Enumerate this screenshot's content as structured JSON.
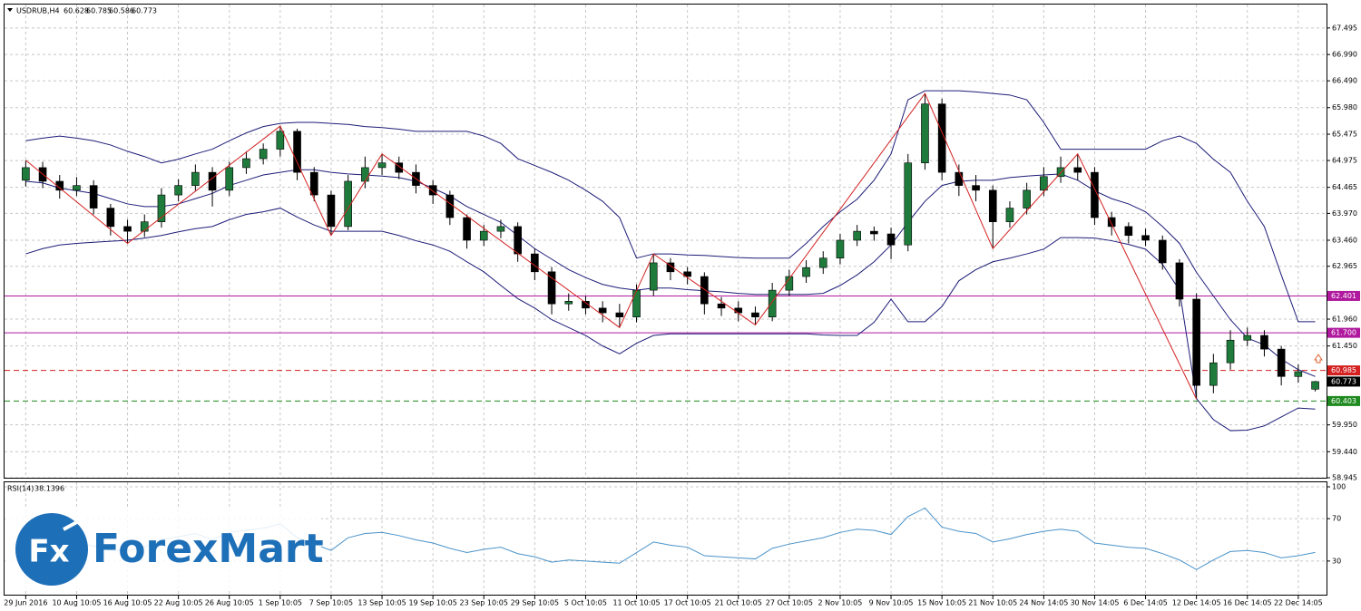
{
  "chart_data": {
    "type": "candlestick",
    "symbol": "USDRUB,H4",
    "categories": [
      "29 Jun 2016",
      null,
      null,
      "10 Aug 10:05",
      null,
      null,
      "16 Aug 10:05",
      null,
      null,
      "22 Aug 10:05",
      null,
      null,
      "26 Aug 10:05",
      null,
      null,
      "1 Sep 10:05",
      null,
      null,
      "7 Sep 10:05",
      null,
      null,
      "13 Sep 10:05",
      null,
      null,
      "19 Sep 10:05",
      null,
      null,
      "23 Sep 10:05",
      null,
      null,
      "29 Sep 10:05",
      null,
      null,
      "5 Oct 10:05",
      null,
      null,
      "11 Oct 10:05",
      null,
      null,
      "17 Oct 10:05",
      null,
      null,
      "21 Oct 10:05",
      null,
      null,
      "27 Oct 10:05",
      null,
      null,
      "2 Nov 10:05",
      null,
      null,
      "9 Nov 10:05",
      null,
      null,
      "15 Nov 10:05",
      null,
      null,
      "21 Nov 10:05",
      null,
      null,
      "24 Nov 14:05",
      null,
      null,
      "30 Nov 14:05",
      null,
      null,
      "6 Dec 14:05",
      null,
      null,
      "12 Dec 14:05",
      null,
      null,
      "16 Dec 14:05",
      null,
      null,
      "22 Dec 14:05",
      null
    ],
    "open": [
      64.6,
      64.84,
      64.58,
      64.41,
      64.5,
      64.07,
      63.72,
      63.63,
      63.81,
      64.32,
      64.5,
      64.75,
      64.41,
      64.84,
      65.01,
      65.19,
      65.53,
      64.75,
      64.32,
      63.72,
      64.58,
      64.84,
      64.93,
      64.75,
      64.5,
      64.32,
      63.89,
      63.46,
      63.63,
      63.72,
      63.2,
      62.86,
      62.25,
      62.3,
      62.17,
      62.08,
      62.0,
      62.51,
      63.03,
      62.86,
      62.77,
      62.25,
      62.17,
      62.08,
      62.0,
      62.51,
      62.77,
      62.94,
      63.12,
      63.46,
      63.63,
      63.58,
      63.37,
      64.93,
      66.05,
      64.75,
      64.5,
      64.41,
      63.81,
      64.07,
      64.41,
      64.67,
      64.84,
      64.75,
      63.89,
      63.72,
      63.55,
      63.46,
      63.03,
      62.34,
      60.7,
      61.13,
      61.56,
      61.65,
      61.39,
      60.87,
      60.628
    ],
    "high": [
      64.98,
      64.95,
      64.7,
      64.66,
      64.6,
      64.15,
      63.85,
      63.95,
      64.45,
      64.62,
      64.9,
      64.85,
      64.95,
      65.15,
      65.3,
      65.63,
      65.58,
      64.85,
      64.4,
      64.7,
      65.05,
      65.1,
      65.05,
      64.9,
      64.6,
      64.4,
      63.95,
      63.75,
      63.85,
      63.8,
      63.3,
      62.95,
      62.45,
      62.4,
      62.3,
      62.25,
      62.62,
      63.2,
      63.12,
      62.95,
      62.85,
      62.38,
      62.3,
      62.2,
      62.65,
      62.9,
      63.08,
      63.25,
      63.58,
      63.75,
      63.72,
      63.7,
      65.1,
      66.25,
      66.15,
      64.9,
      64.7,
      64.5,
      64.2,
      64.55,
      64.85,
      65.05,
      65.1,
      64.85,
      64.0,
      63.8,
      63.68,
      63.55,
      63.1,
      62.45,
      61.3,
      61.75,
      61.8,
      61.75,
      61.45,
      61.1,
      60.785
    ],
    "low": [
      64.48,
      64.45,
      64.25,
      64.3,
      63.95,
      63.55,
      63.4,
      63.52,
      63.7,
      64.2,
      64.4,
      64.1,
      64.3,
      64.72,
      64.9,
      65.05,
      64.6,
      64.2,
      63.55,
      63.65,
      64.45,
      64.7,
      64.62,
      64.35,
      64.15,
      63.75,
      63.3,
      63.35,
      63.5,
      63.05,
      62.7,
      62.05,
      62.12,
      62.05,
      61.9,
      61.8,
      61.9,
      62.4,
      62.7,
      62.62,
      62.05,
      62.02,
      61.92,
      61.85,
      61.92,
      62.4,
      62.65,
      62.82,
      63.0,
      63.35,
      63.45,
      63.1,
      63.25,
      64.8,
      64.6,
      64.3,
      64.2,
      63.3,
      63.7,
      63.95,
      64.3,
      64.55,
      64.6,
      63.75,
      63.55,
      63.4,
      63.35,
      62.9,
      62.2,
      60.44,
      60.55,
      61.0,
      61.45,
      61.25,
      60.7,
      60.75,
      60.586
    ],
    "close": [
      64.84,
      64.58,
      64.41,
      64.5,
      64.07,
      63.72,
      63.63,
      63.81,
      64.32,
      64.5,
      64.75,
      64.41,
      64.84,
      65.01,
      65.19,
      65.53,
      64.75,
      64.32,
      63.72,
      64.58,
      64.84,
      64.93,
      64.75,
      64.5,
      64.32,
      63.89,
      63.46,
      63.63,
      63.72,
      63.2,
      62.86,
      62.25,
      62.3,
      62.17,
      62.08,
      62.0,
      62.51,
      63.03,
      62.86,
      62.77,
      62.25,
      62.17,
      62.08,
      62.0,
      62.51,
      62.77,
      62.94,
      63.12,
      63.46,
      63.63,
      63.58,
      63.37,
      64.93,
      66.05,
      64.75,
      64.5,
      64.41,
      63.81,
      64.07,
      64.41,
      64.67,
      64.84,
      64.75,
      63.89,
      63.72,
      63.55,
      63.46,
      63.03,
      62.34,
      60.7,
      61.13,
      61.56,
      61.65,
      61.39,
      60.87,
      60.96,
      60.773
    ],
    "bull_color": "#1e7b3c",
    "bear_color": "#000000",
    "ylim": [
      58.945,
      67.94
    ],
    "yticks": [
      {
        "value": 67.495,
        "label": "67.495"
      },
      {
        "value": 66.99,
        "label": "66.990"
      },
      {
        "value": 66.49,
        "label": "66.490"
      },
      {
        "value": 65.98,
        "label": "65.980"
      },
      {
        "value": 65.475,
        "label": "65.475"
      },
      {
        "value": 64.975,
        "label": "64.975"
      },
      {
        "value": 64.465,
        "label": "64.465"
      },
      {
        "value": 63.97,
        "label": "63.970"
      },
      {
        "value": 63.46,
        "label": "63.460"
      },
      {
        "value": 62.965,
        "label": "62.965"
      },
      {
        "value": 61.96,
        "label": "61.960"
      },
      {
        "value": 61.45,
        "label": "61.450"
      },
      {
        "value": 59.95,
        "label": "59.950"
      },
      {
        "value": 59.44,
        "label": "59.440"
      },
      {
        "value": 58.945,
        "label": "58.945"
      }
    ],
    "grid": true,
    "bollinger": {
      "color": "#1c1c78",
      "upper": [
        65.35,
        65.4,
        65.44,
        65.4,
        65.35,
        65.27,
        65.15,
        65.05,
        64.93,
        65.0,
        65.1,
        65.19,
        65.35,
        65.5,
        65.62,
        65.68,
        65.7,
        65.7,
        65.68,
        65.66,
        65.62,
        65.6,
        65.57,
        65.53,
        65.53,
        65.53,
        65.53,
        65.44,
        65.3,
        65.01,
        64.88,
        64.75,
        64.6,
        64.41,
        64.2,
        63.89,
        63.12,
        63.2,
        63.2,
        63.18,
        63.17,
        63.15,
        63.13,
        63.12,
        63.12,
        63.12,
        63.4,
        63.72,
        64.0,
        64.24,
        64.6,
        65.1,
        66.13,
        66.3,
        66.3,
        66.3,
        66.28,
        66.25,
        66.22,
        66.13,
        65.7,
        65.19,
        65.19,
        65.19,
        65.19,
        65.19,
        65.19,
        65.35,
        65.44,
        65.3,
        65.0,
        64.75,
        64.2,
        63.72,
        62.8,
        61.91,
        61.91
      ],
      "middle": [
        64.58,
        64.55,
        64.45,
        64.4,
        64.35,
        64.25,
        64.15,
        64.1,
        64.1,
        64.15,
        64.25,
        64.35,
        64.5,
        64.6,
        64.7,
        64.75,
        64.8,
        64.8,
        64.75,
        64.72,
        64.7,
        64.68,
        64.65,
        64.58,
        64.45,
        64.3,
        64.1,
        63.95,
        63.8,
        63.55,
        63.3,
        63.1,
        62.9,
        62.75,
        62.62,
        62.55,
        62.51,
        62.55,
        62.55,
        62.52,
        62.5,
        62.48,
        62.45,
        62.43,
        62.43,
        62.43,
        62.43,
        62.45,
        62.6,
        62.8,
        63.05,
        63.37,
        63.8,
        64.2,
        64.5,
        64.58,
        64.6,
        64.6,
        64.65,
        64.68,
        64.7,
        64.72,
        64.6,
        64.4,
        64.25,
        64.15,
        64.0,
        63.72,
        63.4,
        62.85,
        62.4,
        61.95,
        61.6,
        61.47,
        61.2,
        61.0,
        60.87
      ],
      "lower": [
        63.2,
        63.3,
        63.37,
        63.4,
        63.42,
        63.44,
        63.46,
        63.5,
        63.55,
        63.62,
        63.68,
        63.72,
        63.85,
        63.95,
        64.0,
        64.07,
        63.9,
        63.75,
        63.63,
        63.63,
        63.63,
        63.63,
        63.55,
        63.45,
        63.37,
        63.25,
        63.05,
        62.86,
        62.6,
        62.35,
        62.17,
        61.95,
        61.8,
        61.65,
        61.45,
        61.3,
        61.5,
        61.65,
        61.68,
        61.68,
        61.68,
        61.68,
        61.68,
        61.68,
        61.68,
        61.68,
        61.68,
        61.66,
        61.65,
        61.65,
        61.9,
        62.34,
        61.91,
        61.91,
        62.2,
        62.69,
        62.9,
        63.05,
        63.12,
        63.2,
        63.29,
        63.51,
        63.51,
        63.5,
        63.45,
        63.38,
        63.29,
        63.0,
        62.51,
        60.45,
        60.05,
        59.84,
        59.85,
        59.93,
        60.1,
        60.27,
        60.25
      ]
    },
    "zigzag": {
      "color": "#d42020",
      "x": [
        0,
        6,
        15,
        18,
        21,
        35,
        37,
        43,
        53,
        57,
        62,
        69
      ],
      "values": [
        64.98,
        63.4,
        65.63,
        63.55,
        65.1,
        61.8,
        63.2,
        61.85,
        66.25,
        63.3,
        65.1,
        60.44
      ]
    },
    "levels": [
      {
        "value": 62.401,
        "label": "62.401",
        "color": "#b0189e",
        "dashed": false
      },
      {
        "value": 61.7,
        "label": "61.700",
        "color": "#b0189e",
        "dashed": false
      },
      {
        "value": 60.985,
        "label": "60.985",
        "color": "#d42020",
        "dashed": true
      },
      {
        "value": 60.403,
        "label": "60.403",
        "color": "#1f8a1f",
        "dashed": true
      }
    ],
    "current_price_color": "#000000",
    "rsi": {
      "title": "RSI(14)",
      "color": "#4a93c9",
      "values": [
        52,
        48,
        46,
        48,
        44,
        40,
        40,
        43,
        50,
        53,
        56,
        50,
        57,
        59,
        61,
        65,
        52,
        46,
        40,
        52,
        56,
        57,
        54,
        50,
        47,
        42,
        38,
        41,
        43,
        37,
        34,
        29,
        31,
        30,
        29,
        28,
        38,
        48,
        45,
        43,
        35,
        34,
        33,
        32,
        42,
        46,
        49,
        52,
        57,
        60,
        59,
        55,
        72,
        80,
        62,
        58,
        56,
        48,
        51,
        55,
        58,
        60,
        58,
        47,
        45,
        43,
        42,
        37,
        31,
        22,
        31,
        39,
        40,
        38,
        33,
        35,
        38.1396
      ],
      "ylim": [
        0,
        100
      ],
      "yticks": [
        30,
        70,
        100
      ]
    }
  },
  "watermark": {
    "icon": "Fx",
    "text": "ForexMart"
  }
}
